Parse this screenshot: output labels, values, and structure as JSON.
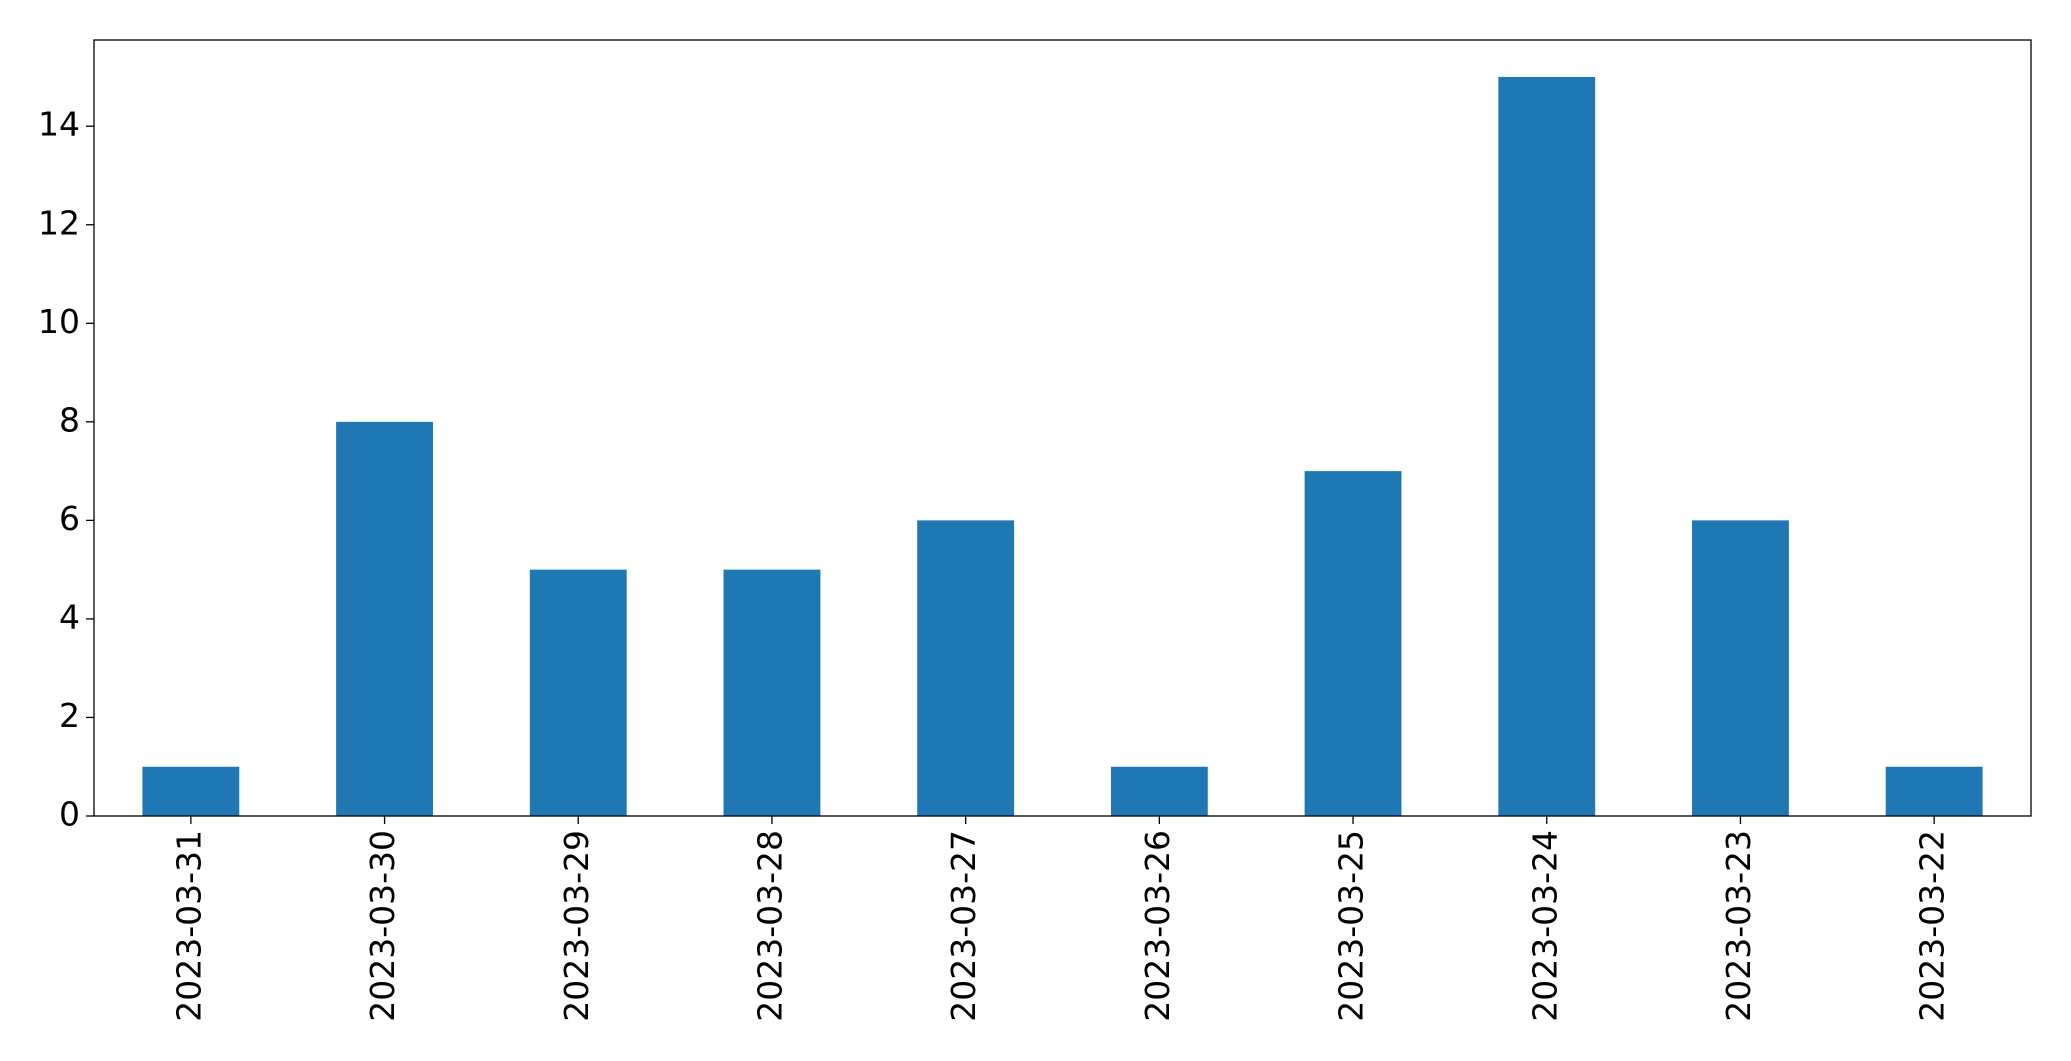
{
  "chart_data": {
    "type": "bar",
    "categories": [
      "2023-03-31",
      "2023-03-30",
      "2023-03-29",
      "2023-03-28",
      "2023-03-27",
      "2023-03-26",
      "2023-03-25",
      "2023-03-24",
      "2023-03-23",
      "2023-03-22"
    ],
    "values": [
      1,
      8,
      5,
      5,
      6,
      1,
      7,
      15,
      6,
      1
    ],
    "color": "#1f77b4",
    "ylim": [
      0,
      15.75
    ],
    "yticks": [
      0,
      2,
      4,
      6,
      8,
      10,
      12,
      14
    ],
    "grid": false
  }
}
